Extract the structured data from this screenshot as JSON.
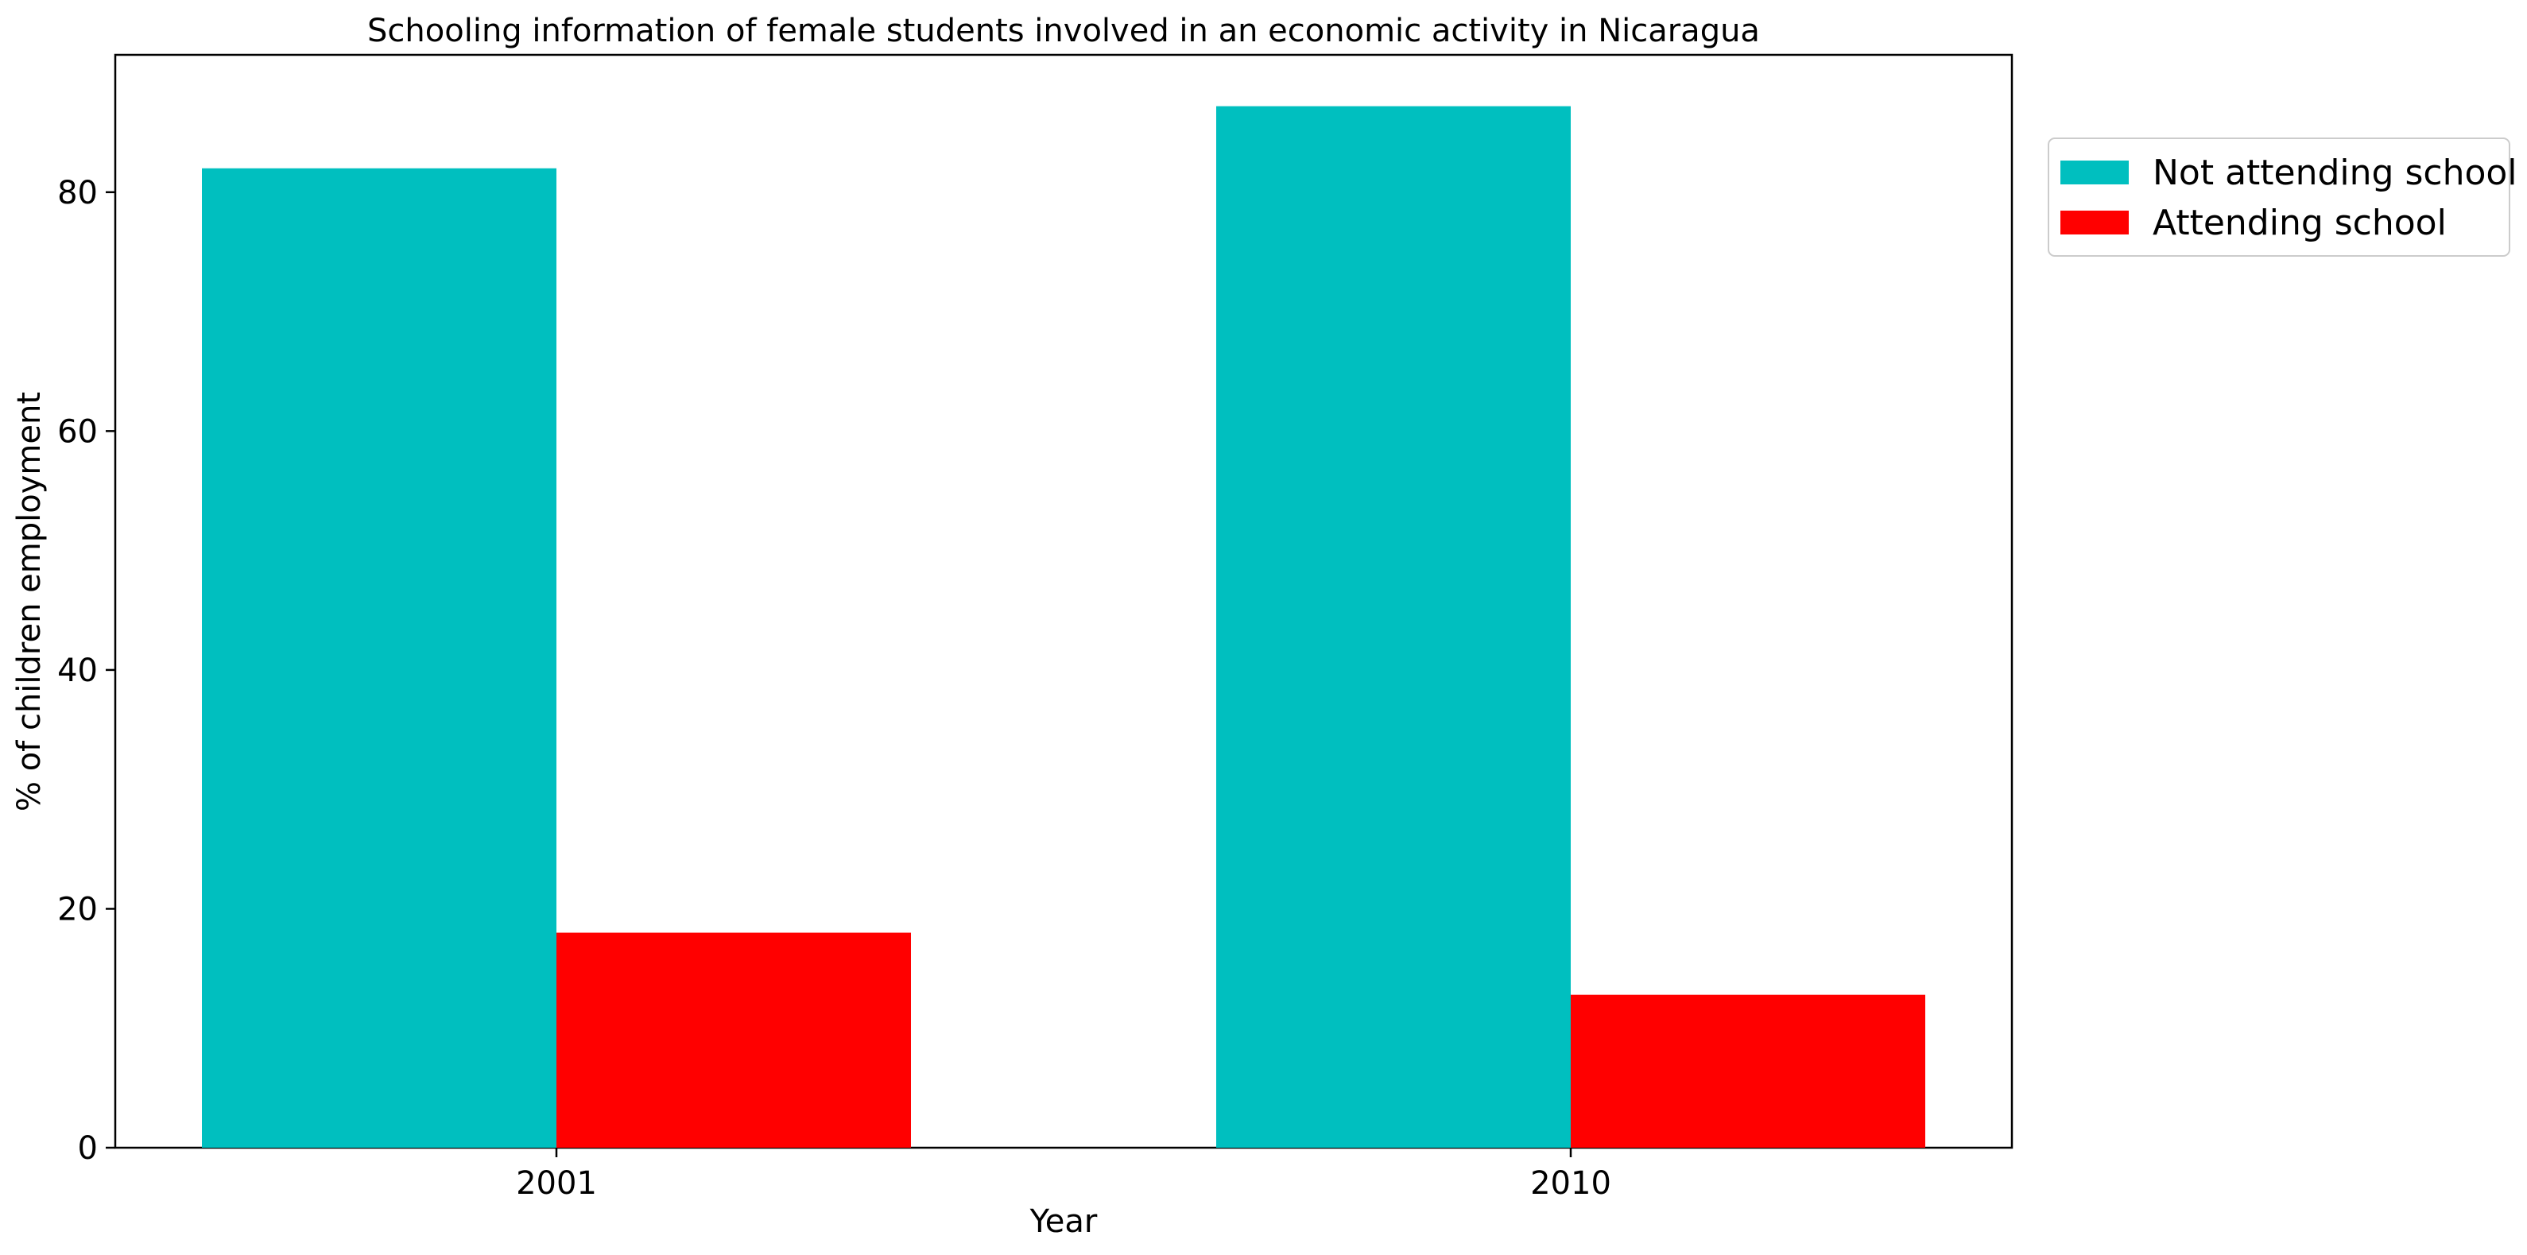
{
  "chart_data": {
    "type": "bar",
    "title": "Schooling information of female students involved in an economic activity in Nicaragua",
    "xlabel": "Year",
    "ylabel": "% of children employment",
    "categories": [
      "2001",
      "2010"
    ],
    "series": [
      {
        "name": "Not attending school",
        "color": "#00bfbf",
        "values": [
          82.0,
          87.2
        ]
      },
      {
        "name": "Attending school",
        "color": "#ff0000",
        "values": [
          18.0,
          12.8
        ]
      }
    ],
    "ylim": [
      0,
      91.5
    ],
    "yticks": [
      0,
      20,
      40,
      60,
      80
    ],
    "grid": false,
    "legend_position": "upper right, outside plot area"
  }
}
